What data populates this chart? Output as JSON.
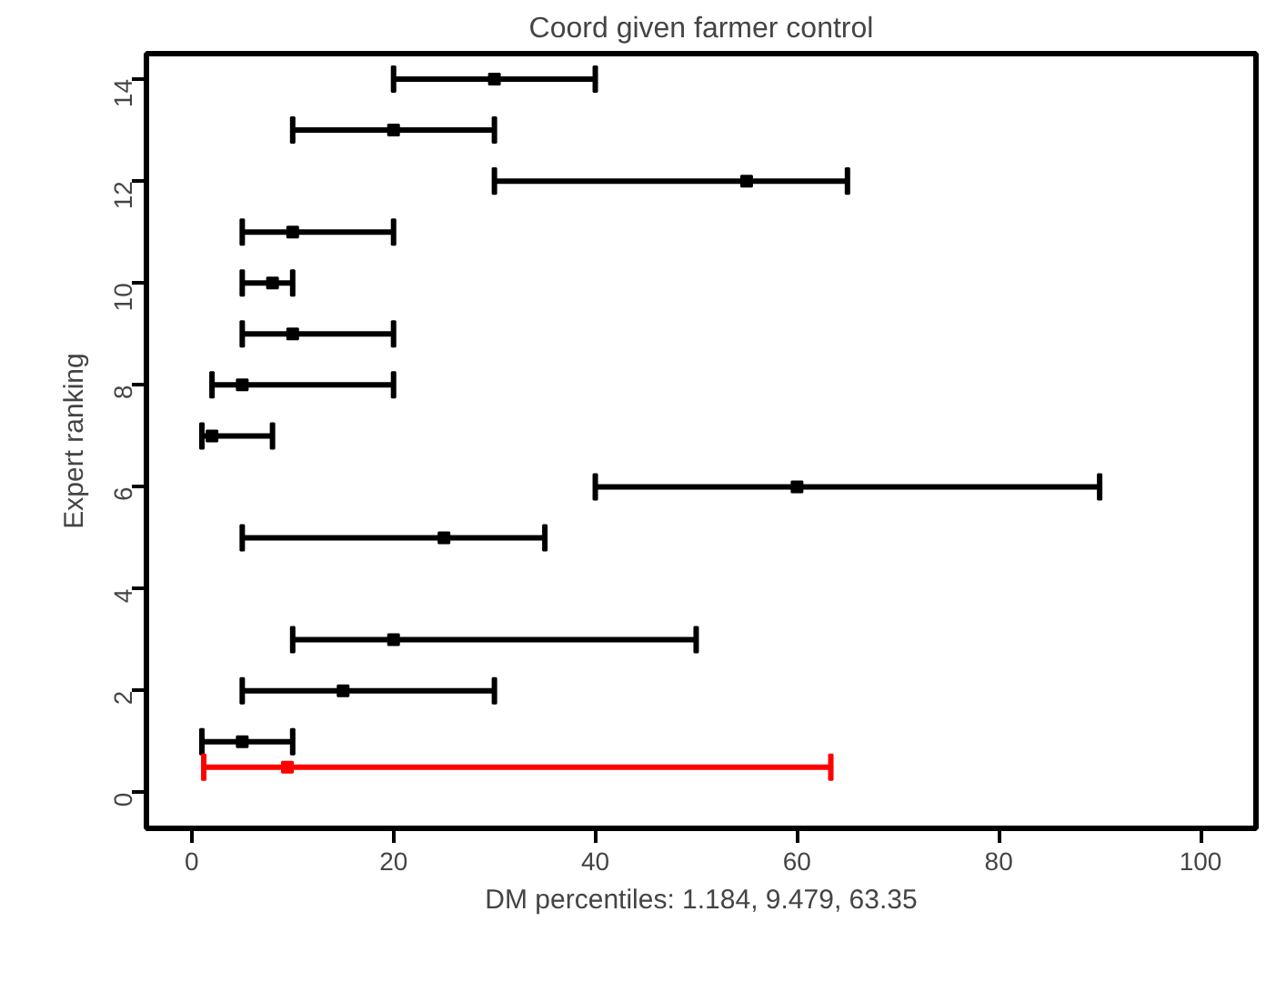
{
  "chart_data": {
    "type": "scatter",
    "title": "Coord given farmer control",
    "xlabel": "DM percentiles: 1.184, 9.479, 63.35",
    "ylabel": "Expert ranking",
    "series": [
      {
        "color": "#000000",
        "x": [
          5,
          15,
          20,
          25,
          60,
          2,
          5,
          10,
          8,
          10,
          55,
          20,
          30
        ],
        "values": [
          1,
          2,
          3,
          5,
          6,
          7,
          8,
          9,
          10,
          11,
          12,
          13,
          14
        ],
        "xerrors": [
          [
            1,
            10
          ],
          [
            5,
            30
          ],
          [
            10,
            50
          ],
          [
            5,
            35
          ],
          [
            40,
            90
          ],
          [
            1,
            8
          ],
          [
            2,
            20
          ],
          [
            5,
            20
          ],
          [
            5,
            10
          ],
          [
            5,
            20
          ],
          [
            30,
            65
          ],
          [
            10,
            30
          ],
          [
            20,
            40
          ]
        ]
      },
      {
        "color": "#ff0000",
        "x": [
          9.479
        ],
        "values": [
          0.5
        ],
        "xerrors": [
          [
            1.184,
            63.35
          ]
        ]
      }
    ],
    "xlim": [
      -4.5,
      105.5
    ],
    "ylim": [
      -0.7,
      14.5
    ],
    "xticks": [
      0,
      20,
      40,
      60,
      80,
      100
    ],
    "yticks": [
      0,
      2,
      4,
      6,
      8,
      10,
      12,
      14
    ],
    "marker": "square",
    "grid": false
  }
}
